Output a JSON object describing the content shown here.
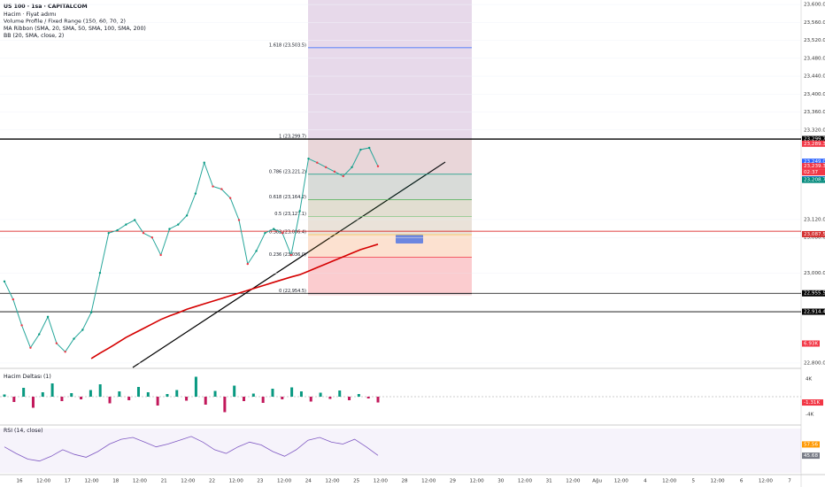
{
  "header": {
    "symbol": "US 100 · 1sa · CAPITALCOM",
    "indicators": [
      "Hacim · Fiyat adımı",
      "Volume Profile / Fixed Range (150, 60, 70, 2)",
      "MA Ribbon (SMA, 20, SMA, 50, SMA, 100, SMA, 200)",
      "BB (20, SMA, close, 2)"
    ]
  },
  "price_pane": {
    "ylim": [
      22790,
      23610
    ],
    "yticks": [
      {
        "value": 23600,
        "label": "23,600.0"
      },
      {
        "value": 23560,
        "label": "23,560.0"
      },
      {
        "value": 23520,
        "label": "23,520.0"
      },
      {
        "value": 23480,
        "label": "23,480.0"
      },
      {
        "value": 23440,
        "label": "23,440.0"
      },
      {
        "value": 23400,
        "label": "23,400.0"
      },
      {
        "value": 23360,
        "label": "23,360.0"
      },
      {
        "value": 23320,
        "label": "23,320.0"
      },
      {
        "value": 23120,
        "label": "23,120.0"
      },
      {
        "value": 23080,
        "label": "23,080.0"
      },
      {
        "value": 23000,
        "label": "23,000.0"
      },
      {
        "value": 22800,
        "label": "22,800.0"
      }
    ],
    "close": [
      22982,
      22942,
      22884,
      22834,
      22864,
      22903,
      22844,
      22825,
      22854,
      22874,
      22913,
      23001,
      23090,
      23096,
      23109,
      23119,
      23090,
      23080,
      23041,
      23099,
      23109,
      23129,
      23178,
      23247,
      23194,
      23188,
      23168,
      23119,
      23021,
      23050,
      23090,
      23099,
      23090,
      23041,
      23139,
      23256,
      23247,
      23237,
      23227,
      23217,
      23237,
      23276,
      23280,
      23239
    ],
    "close_color": "#26a69a",
    "ma": {
      "color": "#d50000",
      "values": [
        null,
        null,
        null,
        null,
        null,
        null,
        null,
        null,
        null,
        null,
        22810,
        22822,
        22833,
        22845,
        22857,
        22867,
        22877,
        22887,
        22897,
        22905,
        22912,
        22920,
        22926,
        22932,
        22938,
        22944,
        22950,
        22956,
        22962,
        22968,
        22974,
        22980,
        22986,
        22992,
        22997,
        23005,
        23013,
        23021,
        23029,
        23037,
        23045,
        23053,
        23059,
        23065
      ]
    },
    "hlines": [
      {
        "value": 23299.7,
        "color": "#000000"
      },
      {
        "value": 23094,
        "color": "#d50000"
      },
      {
        "value": 22955.5,
        "color": "#000000"
      },
      {
        "value": 22914.4,
        "color": "#000000"
      }
    ],
    "fib_levels": [
      {
        "label": "1.618 (23,503.5)",
        "value": 23503.5,
        "color": "#2962ff"
      },
      {
        "label": "1 (23,299.7)",
        "value": 23299.7,
        "color": "#787b86"
      },
      {
        "label": "0.786 (23,221.2)",
        "value": 23221.2,
        "color": "#089981"
      },
      {
        "label": "0.618 (23,164.2)",
        "value": 23164.2,
        "color": "#4caf50"
      },
      {
        "label": "0.5 (23,127.1)",
        "value": 23127.1,
        "color": "#81c784"
      },
      {
        "label": "0.382 (23,086.4)",
        "value": 23086.4,
        "color": "#f7c548"
      },
      {
        "label": "0.236 (23,036.0)",
        "value": 23036,
        "color": "#f23645"
      },
      {
        "label": "0 (22,954.5)",
        "value": 22954.5,
        "color": "#787b86"
      }
    ],
    "price_tags": [
      {
        "value": 23299.7,
        "label": "23,299.7",
        "color": "#000000"
      },
      {
        "value": 23289.3,
        "label": "23,289.3",
        "color": "#f23645"
      },
      {
        "value": 23249.0,
        "label": "23,249.0",
        "color": "#2962ff"
      },
      {
        "value": 23239.3,
        "label": "23,239.3",
        "color": "#f23645"
      },
      {
        "value": 23209.9,
        "label": "23,209.9",
        "color": "#2962ff"
      },
      {
        "value": 23208.7,
        "label": "23,208.7",
        "color": "#00897b"
      },
      {
        "value": 23087.5,
        "label": "23,087.5",
        "color": "#d32f2f"
      },
      {
        "value": 22955.5,
        "label": "22,955.5",
        "color": "#000000"
      },
      {
        "value": 22914.4,
        "label": "22,914.4",
        "color": "#000000"
      }
    ],
    "countdown": "02:37",
    "volume_tag": "6.93K"
  },
  "delta_pane": {
    "title": "Hacim Deltası (1)",
    "ylim": [
      -6,
      6
    ],
    "yticks": [
      {
        "value": 4,
        "label": "4K"
      },
      {
        "value": -4,
        "label": "-4K"
      }
    ],
    "values": [
      0.5,
      -1.2,
      2,
      -2.5,
      1,
      3,
      -1,
      0.8,
      -0.6,
      1.5,
      2.8,
      -1.5,
      1.2,
      -0.8,
      2.2,
      1,
      -2,
      0.6,
      1.5,
      -0.9,
      4.5,
      -1.8,
      1.3,
      -3.5,
      2.5,
      -1,
      0.7,
      -1.4,
      1.8,
      -0.6,
      2.1,
      1.2,
      -1.1,
      0.9,
      -0.5,
      1.4,
      -0.8,
      0.6,
      -0.4,
      -1.31
    ],
    "value_label": {
      "value": -1.31,
      "label": "-1.31K"
    }
  },
  "rsi_pane": {
    "title": "RSI (14, close)",
    "ylim": [
      20,
      80
    ],
    "values": [
      55,
      48,
      42,
      40,
      45,
      52,
      47,
      44,
      50,
      58,
      63,
      65,
      60,
      55,
      58,
      62,
      66,
      60,
      52,
      48,
      55,
      60,
      57,
      50,
      45,
      52,
      62,
      65,
      60,
      58,
      63,
      55,
      46
    ],
    "color": "#7e57c2",
    "tags": [
      {
        "value": 57.56,
        "label": "57.56",
        "color": "#ff9800"
      },
      {
        "value": 45.68,
        "label": "45.68",
        "color": "#787b86"
      }
    ]
  },
  "time_axis": [
    "16",
    "12:00",
    "17",
    "12:00",
    "18",
    "12:00",
    "21",
    "12:00",
    "22",
    "12:00",
    "23",
    "12:00",
    "24",
    "12:00",
    "25",
    "12:00",
    "28",
    "12:00",
    "29",
    "12:00",
    "30",
    "12:00",
    "31",
    "12:00",
    "Ağu",
    "12:00",
    "4",
    "12:00",
    "5",
    "12:00",
    "6",
    "12:00",
    "7"
  ]
}
